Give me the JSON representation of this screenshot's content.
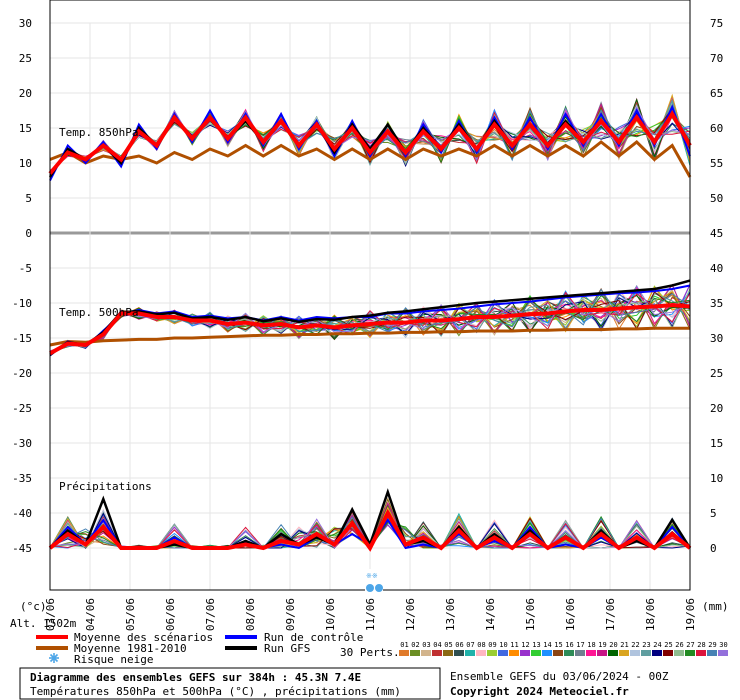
{
  "chart_data": {
    "type": "line",
    "x_labels": [
      "03/06",
      "04/06",
      "05/06",
      "06/06",
      "07/06",
      "08/06",
      "09/06",
      "10/06",
      "11/06",
      "12/06",
      "13/06",
      "14/06",
      "15/06",
      "16/06",
      "17/06",
      "18/06",
      "19/06"
    ],
    "left_axis_ticks": [
      "30",
      "25",
      "20",
      "15",
      "10",
      "5",
      "0",
      "-5",
      "-10",
      "-15",
      "-20",
      "-25",
      "-30",
      "-35",
      "-40",
      "-45"
    ],
    "right_axis_ticks": [
      "75",
      "70",
      "65",
      "60",
      "55",
      "50",
      "45",
      "40",
      "35",
      "30",
      "25",
      "20",
      "15",
      "10",
      "5",
      "0"
    ],
    "left_axis_unit": "(°c)",
    "right_axis_unit": "(mm)",
    "panel_labels": {
      "t850": "Temp. 850hPa",
      "t500": "Temp. 500hPa",
      "precip": "Précipitations"
    },
    "altitude": "Alt. 1502m",
    "t850": {
      "mean": [
        8.5,
        11.5,
        10.5,
        12.5,
        10.5,
        14.5,
        12.5,
        16.5,
        13.5,
        16.5,
        13.5,
        16.5,
        13,
        16,
        12.5,
        15.5,
        12,
        15,
        11.5,
        14.5,
        11.5,
        14.5,
        12,
        15,
        12,
        15.5,
        12.5,
        15.5,
        12.5,
        15.5,
        13,
        16,
        13,
        16.5,
        13,
        17,
        12.5
      ],
      "climatology": [
        10.5,
        11.5,
        10,
        11,
        10.5,
        11,
        10,
        11.5,
        10.5,
        12,
        11,
        12.5,
        11,
        12.5,
        11,
        12,
        10.5,
        12,
        10.5,
        12,
        10.5,
        12,
        11,
        12,
        11,
        12.5,
        11,
        12.5,
        11,
        12.5,
        11,
        13,
        11,
        13,
        10.5,
        12.5,
        8
      ],
      "control": [
        7.5,
        12.5,
        10,
        13,
        9.5,
        15.5,
        12,
        17,
        13,
        17.5,
        13,
        17,
        12.5,
        17,
        12,
        16,
        11,
        16,
        11,
        15.5,
        11,
        15.5,
        11.5,
        16,
        11.5,
        16.5,
        12,
        16.5,
        12,
        17,
        12.5,
        17,
        12.5,
        17.5,
        12.5,
        18,
        11
      ],
      "gfs": [
        8,
        12,
        10.5,
        12.5,
        10,
        15,
        12.5,
        16.5,
        13.5,
        16.5,
        13.5,
        16,
        13,
        16,
        12.5,
        15.5,
        11.5,
        15.5,
        12,
        15.5,
        11.5,
        15,
        12,
        15.5,
        12,
        16,
        12.5,
        15.5,
        12.5,
        16,
        13,
        16,
        13,
        16.5,
        13,
        17,
        12.5
      ]
    },
    "t500": {
      "mean": [
        -17.2,
        -15.8,
        -16,
        -14.5,
        -11.5,
        -11.5,
        -12,
        -12,
        -12.5,
        -12.5,
        -13,
        -12.8,
        -13.2,
        -13,
        -13.5,
        -13.2,
        -13.5,
        -13.2,
        -13,
        -12.8,
        -12.8,
        -12.5,
        -12.5,
        -12.3,
        -12,
        -12,
        -11.8,
        -11.6,
        -11.5,
        -11.2,
        -11,
        -11,
        -10.8,
        -10.6,
        -10.5,
        -10.3,
        -10.5
      ],
      "climatology": [
        -16,
        -15.5,
        -15.6,
        -15.4,
        -15.3,
        -15.2,
        -15.2,
        -15,
        -15,
        -14.9,
        -14.8,
        -14.7,
        -14.6,
        -14.6,
        -14.5,
        -14.5,
        -14.4,
        -14.4,
        -14.3,
        -14.3,
        -14.2,
        -14.2,
        -14.1,
        -14.1,
        -14,
        -14,
        -14,
        -13.9,
        -13.9,
        -13.8,
        -13.8,
        -13.8,
        -13.7,
        -13.7,
        -13.6,
        -13.6,
        -13.6
      ],
      "control": [
        -17.5,
        -15.5,
        -16.2,
        -14,
        -11.5,
        -11,
        -11.5,
        -11.2,
        -12,
        -11.8,
        -12.2,
        -12,
        -12.5,
        -12,
        -12.5,
        -12,
        -12.2,
        -12,
        -12,
        -11.5,
        -11.5,
        -11.2,
        -11,
        -10.8,
        -10.5,
        -10.2,
        -10,
        -9.8,
        -9.5,
        -9.2,
        -9,
        -8.8,
        -8.6,
        -8.5,
        -8.3,
        -8,
        -7.5
      ],
      "gfs": [
        -17.4,
        -15.6,
        -16,
        -14.2,
        -11.3,
        -11.2,
        -11.6,
        -11.4,
        -12.2,
        -12,
        -12.4,
        -12,
        -12.6,
        -12.2,
        -12.7,
        -12.3,
        -12.4,
        -12,
        -11.8,
        -11.4,
        -11.2,
        -10.9,
        -10.6,
        -10.3,
        -10,
        -9.8,
        -9.6,
        -9.4,
        -9.2,
        -9,
        -8.8,
        -8.6,
        -8.4,
        -8.2,
        -8,
        -7.5,
        -6.8
      ]
    },
    "precip_mm": {
      "mean": [
        0,
        2,
        0.5,
        3,
        0,
        0,
        0,
        1,
        0,
        0,
        0,
        0.5,
        0,
        1,
        0.5,
        2,
        0.5,
        3.5,
        0,
        5,
        0.5,
        1.5,
        0,
        2.5,
        0,
        1.5,
        0,
        2,
        0,
        1.5,
        0,
        2,
        0,
        1.5,
        0,
        2,
        0
      ],
      "control": [
        0,
        3,
        0.5,
        4,
        0,
        0,
        0,
        1.5,
        0,
        0,
        0,
        1,
        0,
        0.5,
        0,
        1.5,
        0.5,
        2,
        0.5,
        4,
        0,
        0.5,
        0,
        2,
        0,
        1,
        0,
        3,
        0,
        0.5,
        0,
        1.5,
        0,
        1,
        0,
        3,
        0
      ],
      "gfs": [
        0,
        2.5,
        0.5,
        7,
        0,
        0,
        0,
        0.5,
        0,
        0,
        0,
        1,
        0,
        2,
        0.5,
        1.5,
        0.5,
        5.5,
        0.5,
        8,
        0.5,
        1,
        0,
        3,
        0,
        2,
        0,
        2.5,
        0,
        1.5,
        0,
        2.5,
        0,
        1,
        0,
        4,
        0
      ]
    },
    "legend": [
      {
        "label": "Moyenne des scénarios",
        "color": "#ff0000"
      },
      {
        "label": "Run de contrôle",
        "color": "#0000ff"
      },
      {
        "label": "Moyenne 1981-2010",
        "color": "#b05000"
      },
      {
        "label": "Run GFS",
        "color": "#000000"
      },
      {
        "label": "Risque neige",
        "color": "#4da6e8"
      }
    ],
    "perts": {
      "label": "30 Perts.",
      "numbers": [
        "01",
        "02",
        "03",
        "04",
        "05",
        "06",
        "07",
        "08",
        "09",
        "10",
        "11",
        "12",
        "13",
        "14",
        "15",
        "16",
        "17",
        "18",
        "19",
        "20",
        "21",
        "22",
        "23",
        "24",
        "25",
        "26",
        "27",
        "28",
        "29",
        "30"
      ],
      "colors": [
        "#e07a2a",
        "#6b8e23",
        "#d2b48c",
        "#c03030",
        "#8b6914",
        "#2f4f4f",
        "#20b2aa",
        "#ffb6c1",
        "#9acd32",
        "#4169e1",
        "#ff8c00",
        "#9932cc",
        "#32cd32",
        "#1e90ff",
        "#8b4513",
        "#2e8b57",
        "#708090",
        "#ff1493",
        "#c71585",
        "#006400",
        "#daa520",
        "#b0c4de",
        "#5f9ea0",
        "#000080",
        "#800000",
        "#8fbc8f",
        "#228b22",
        "#dc143c",
        "#4682b4",
        "#9370db"
      ]
    },
    "title": "Diagramme des ensembles GEFS sur 384h : 45.3N 7.4E",
    "subtitle": "Températures 850hPa et 500hPa (°C) , précipitations (mm)",
    "run_info": "Ensemble GEFS du 03/06/2024 - 00Z",
    "copyright": "Copyright 2024 Meteociel.fr"
  }
}
